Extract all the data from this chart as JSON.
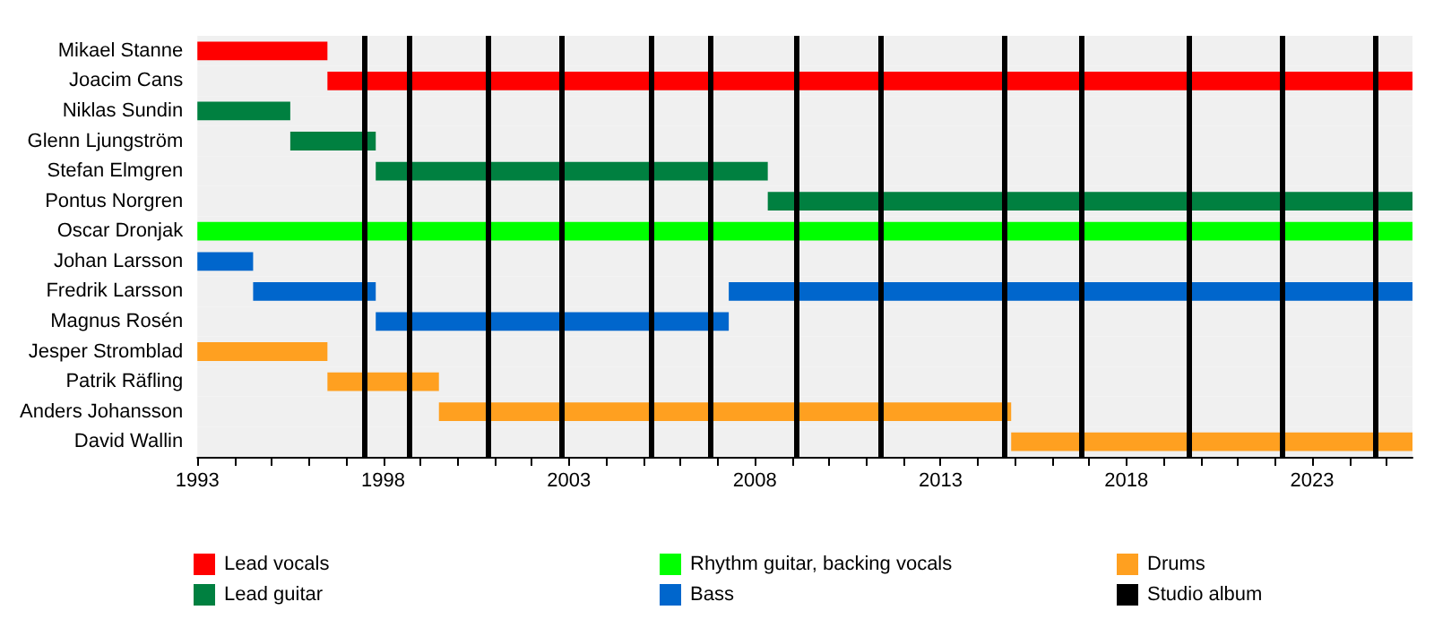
{
  "chart_data": {
    "type": "bar",
    "orientation": "horizontal",
    "categories": [
      "Mikael Stanne",
      "Joacim Cans",
      "Niklas Sundin",
      "Glenn Ljungström",
      "Stefan Elmgren",
      "Pontus Norgren",
      "Oscar Dronjak",
      "Johan Larsson",
      "Fredrik Larsson",
      "Magnus Rosén",
      "Jesper Stromblad",
      "Patrik Räfling",
      "Anders Johansson",
      "David Wallin"
    ],
    "series": [
      {
        "name": "Lead vocals",
        "color": "#ff0000",
        "base": [
          1993,
          1996.5,
          null,
          null,
          null,
          null,
          null,
          null,
          null,
          null,
          null,
          null,
          null,
          null
        ],
        "values": [
          3.5,
          29.2,
          null,
          null,
          null,
          null,
          null,
          null,
          null,
          null,
          null,
          null,
          null,
          null
        ]
      },
      {
        "name": "Lead guitar",
        "color": "#008040",
        "base": [
          null,
          null,
          1993,
          1995.5,
          1997.8,
          2008.35,
          null,
          null,
          null,
          null,
          null,
          null,
          null,
          null
        ],
        "values": [
          null,
          null,
          2.5,
          2.3,
          10.55,
          17.35,
          null,
          null,
          null,
          null,
          null,
          null,
          null,
          null
        ]
      },
      {
        "name": "Rhythm guitar, backing vocals",
        "color": "#00ff00",
        "base": [
          null,
          null,
          null,
          null,
          null,
          null,
          1993,
          null,
          null,
          null,
          null,
          null,
          null,
          null
        ],
        "values": [
          null,
          null,
          null,
          null,
          null,
          null,
          32.7,
          null,
          null,
          null,
          null,
          null,
          null,
          null
        ]
      },
      {
        "name": "Bass",
        "color": "#0066cc",
        "base": [
          null,
          null,
          null,
          null,
          null,
          null,
          null,
          1993,
          1994.5,
          1997.8,
          null,
          null,
          null,
          null
        ],
        "values": [
          null,
          null,
          null,
          null,
          null,
          null,
          null,
          1.5,
          3.3,
          9.5,
          null,
          null,
          null,
          null
        ]
      },
      {
        "color": "#0066cc",
        "base": [
          null,
          null,
          null,
          null,
          null,
          null,
          null,
          null,
          2007.3,
          null,
          null,
          null,
          null,
          null
        ],
        "values": [
          null,
          null,
          null,
          null,
          null,
          null,
          null,
          null,
          18.4,
          null,
          null,
          null,
          null,
          null
        ]
      },
      {
        "name": "Drums",
        "color": "#ffa020",
        "base": [
          null,
          null,
          null,
          null,
          null,
          null,
          null,
          null,
          null,
          null,
          1993,
          1996.5,
          1999.5,
          2014.9
        ],
        "values": [
          null,
          null,
          null,
          null,
          null,
          null,
          null,
          null,
          null,
          null,
          3.5,
          3,
          15.4,
          10.8
        ]
      }
    ],
    "xlim": [
      1993,
      2025.7
    ],
    "xticks": [
      1993,
      {
        "value": 1994,
        "label": null
      },
      {
        "value": 1995,
        "label": null
      },
      {
        "value": 1996,
        "label": null
      },
      {
        "value": 1997,
        "label": null
      },
      1998,
      {
        "value": 1999,
        "label": null
      },
      {
        "value": 2000,
        "label": null
      },
      {
        "value": 2001,
        "label": null
      },
      {
        "value": 2002,
        "label": null
      },
      2003,
      {
        "value": 2004,
        "label": null
      },
      {
        "value": 2005,
        "label": null
      },
      {
        "value": 2006,
        "label": null
      },
      {
        "value": 2007,
        "label": null
      },
      2008,
      {
        "value": 2009,
        "label": null
      },
      {
        "value": 2010,
        "label": null
      },
      {
        "value": 2011,
        "label": null
      },
      {
        "value": 2012,
        "label": null
      },
      2013,
      {
        "value": 2014,
        "label": null
      },
      {
        "value": 2015,
        "label": null
      },
      {
        "value": 2016,
        "label": null
      },
      {
        "value": 2017,
        "label": null
      },
      2018,
      {
        "value": 2019,
        "label": null
      },
      {
        "value": 2020,
        "label": null
      },
      {
        "value": 2021,
        "label": null
      },
      {
        "value": 2022,
        "label": null
      },
      2023,
      {
        "value": 2024,
        "label": null
      },
      {
        "value": 2025,
        "label": null
      }
    ],
    "ref_lines": [
      {
        "axis": "x",
        "value": 1997.5,
        "label": "Studio album",
        "color": "#000000"
      },
      {
        "axis": "x",
        "value": 1998.7,
        "color": "#000000"
      },
      {
        "axis": "x",
        "value": 2000.8,
        "color": "#000000"
      },
      {
        "axis": "x",
        "value": 2002.8,
        "color": "#000000"
      },
      {
        "axis": "x",
        "value": 2005.2,
        "color": "#000000"
      },
      {
        "axis": "x",
        "value": 2006.8,
        "color": "#000000"
      },
      {
        "axis": "x",
        "value": 2009.1,
        "color": "#000000"
      },
      {
        "axis": "x",
        "value": 2011.4,
        "color": "#000000"
      },
      {
        "axis": "x",
        "value": 2014.7,
        "color": "#000000"
      },
      {
        "axis": "x",
        "value": 2016.8,
        "color": "#000000"
      },
      {
        "axis": "x",
        "value": 2019.7,
        "color": "#000000"
      },
      {
        "axis": "x",
        "value": 2022.2,
        "color": "#000000"
      },
      {
        "axis": "x",
        "value": 2024.7,
        "color": "#000000"
      }
    ],
    "legend": "bottom"
  }
}
